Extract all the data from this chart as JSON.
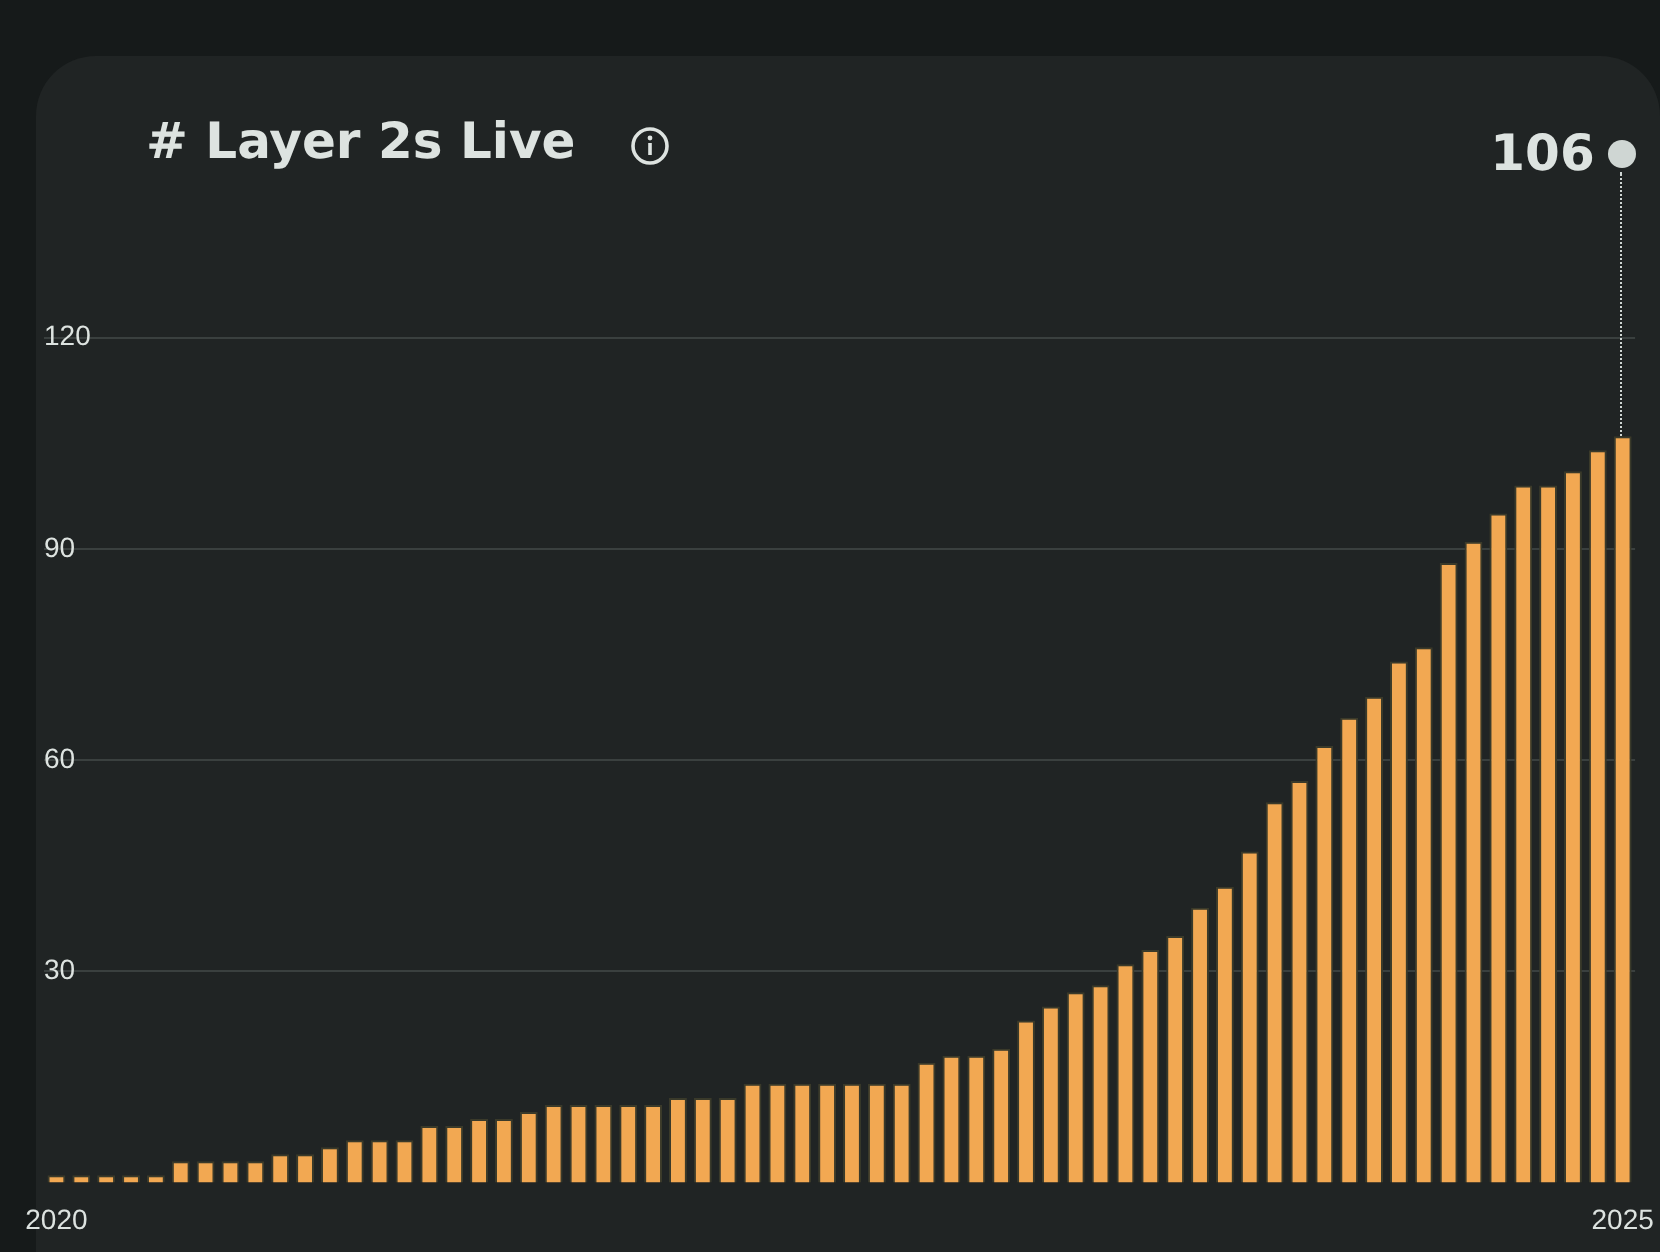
{
  "chart_data": {
    "type": "bar",
    "title": "# Layer 2s Live",
    "categories": [
      "2020",
      null,
      null,
      null,
      null,
      null,
      null,
      null,
      null,
      null,
      null,
      null,
      null,
      null,
      null,
      null,
      null,
      null,
      null,
      null,
      null,
      null,
      null,
      null,
      null,
      null,
      null,
      null,
      null,
      null,
      null,
      null,
      null,
      null,
      null,
      null,
      null,
      null,
      null,
      null,
      null,
      null,
      null,
      null,
      null,
      null,
      null,
      null,
      null,
      null,
      null,
      null,
      null,
      null,
      null,
      null,
      null,
      null,
      null,
      null,
      null,
      null,
      null,
      "2025"
    ],
    "values": [
      1,
      1,
      1,
      1,
      1,
      3,
      3,
      3,
      3,
      4,
      4,
      5,
      6,
      6,
      6,
      8,
      8,
      9,
      9,
      10,
      11,
      11,
      11,
      11,
      11,
      12,
      12,
      12,
      14,
      14,
      14,
      14,
      14,
      14,
      14,
      17,
      18,
      18,
      19,
      23,
      25,
      27,
      28,
      31,
      33,
      35,
      39,
      42,
      47,
      54,
      57,
      62,
      66,
      69,
      74,
      76,
      88,
      91,
      95,
      99,
      99,
      101,
      104,
      106
    ],
    "color": "#f2a852",
    "ylim": [
      0,
      160
    ],
    "yticks": [
      30,
      60,
      90,
      120
    ],
    "grid": "y",
    "legend": false,
    "annotations": [
      {
        "text": "106",
        "x": "2025",
        "y": 106
      }
    ]
  }
}
